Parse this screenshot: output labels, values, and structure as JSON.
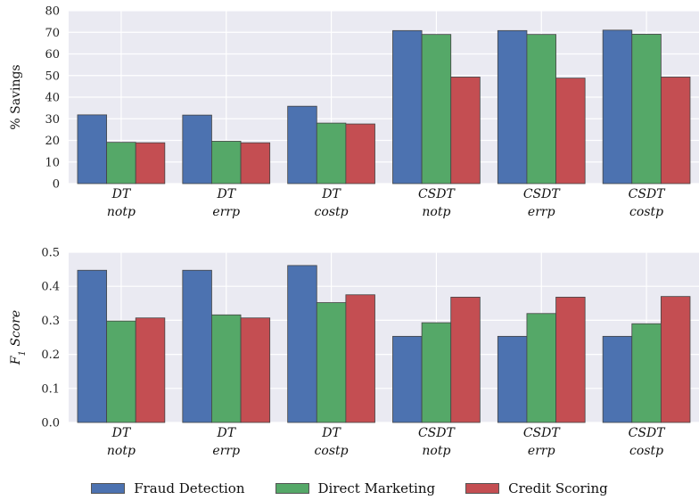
{
  "legend": [
    {
      "name": "Fraud Detection",
      "color": "#4c72b0"
    },
    {
      "name": "Direct Marketing",
      "color": "#55a868"
    },
    {
      "name": "Credit Scoring",
      "color": "#c44e52"
    }
  ],
  "chart_data": [
    {
      "type": "bar",
      "ylabel": "% Savings",
      "ylim": [
        0,
        80
      ],
      "yticks": [
        "0",
        "10",
        "20",
        "30",
        "40",
        "50",
        "60",
        "70",
        "80"
      ],
      "categories": [
        [
          "DT",
          "notp"
        ],
        [
          "DT",
          "errp"
        ],
        [
          "DT",
          "costp"
        ],
        [
          "CSDT",
          "notp"
        ],
        [
          "CSDT",
          "errp"
        ],
        [
          "CSDT",
          "costp"
        ]
      ],
      "series": [
        {
          "name": "Fraud Detection",
          "values": [
            31.8,
            31.7,
            35.8,
            70.8,
            70.8,
            71.0
          ]
        },
        {
          "name": "Direct Marketing",
          "values": [
            19.1,
            19.6,
            28.0,
            69.0,
            69.0,
            69.1
          ]
        },
        {
          "name": "Credit Scoring",
          "values": [
            18.9,
            18.9,
            27.6,
            49.3,
            48.8,
            49.3
          ]
        }
      ],
      "grid": true
    },
    {
      "type": "bar",
      "ylabel": "F1 Score",
      "ylim": [
        0,
        0.5
      ],
      "yticks": [
        "0.0",
        "0.1",
        "0.2",
        "0.3",
        "0.4",
        "0.5"
      ],
      "categories": [
        [
          "DT",
          "notp"
        ],
        [
          "DT",
          "errp"
        ],
        [
          "DT",
          "costp"
        ],
        [
          "CSDT",
          "notp"
        ],
        [
          "CSDT",
          "errp"
        ],
        [
          "CSDT",
          "costp"
        ]
      ],
      "series": [
        {
          "name": "Fraud Detection",
          "values": [
            0.447,
            0.447,
            0.461,
            0.253,
            0.253,
            0.253
          ]
        },
        {
          "name": "Direct Marketing",
          "values": [
            0.298,
            0.316,
            0.352,
            0.293,
            0.32,
            0.29
          ]
        },
        {
          "name": "Credit Scoring",
          "values": [
            0.307,
            0.307,
            0.375,
            0.368,
            0.368,
            0.37
          ]
        }
      ],
      "grid": true
    }
  ]
}
